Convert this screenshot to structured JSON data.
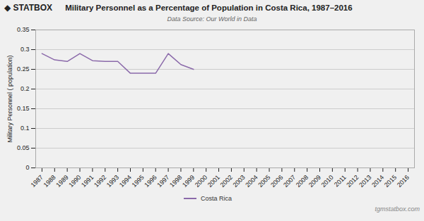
{
  "chart_data": {
    "type": "line",
    "title": "Military Personnel as a Percentage of Population in Costa Rica, 1987–2016",
    "subtitle": "Data Source: Our World in Data",
    "ylabel": "Military Personnel ( population)",
    "annotations": [
      "◆ STATBOX",
      "tgmstatbox.com"
    ],
    "x": [
      1987,
      1988,
      1989,
      1990,
      1991,
      1992,
      1993,
      1994,
      1995,
      1996,
      1997,
      1998,
      1999,
      2000,
      2001,
      2002,
      2003,
      2004,
      2005,
      2006,
      2007,
      2008,
      2009,
      2010,
      2011,
      2012,
      2013,
      2014,
      2015,
      2016
    ],
    "series": [
      {
        "name": "Costa Rica",
        "color": "#8b6aaa",
        "values": [
          0.29,
          0.274,
          0.27,
          0.29,
          0.272,
          0.27,
          0.27,
          0.24,
          0.24,
          0.24,
          0.29,
          0.262,
          0.25,
          null,
          null,
          null,
          null,
          null,
          null,
          null,
          null,
          null,
          null,
          null,
          null,
          null,
          null,
          null,
          null,
          null
        ]
      }
    ],
    "xlim": [
      1986.5,
      2016.5
    ],
    "xticks": [
      1987,
      1988,
      1989,
      1990,
      1991,
      1992,
      1993,
      1994,
      1995,
      1996,
      1997,
      1998,
      1999,
      2000,
      2001,
      2002,
      2003,
      2004,
      2005,
      2006,
      2007,
      2008,
      2009,
      2010,
      2011,
      2012,
      2013,
      2014,
      2015,
      2016
    ],
    "ylim": [
      0,
      0.35
    ],
    "yticks": [
      0,
      0.05,
      0.1,
      0.15,
      0.2,
      0.25,
      0.3,
      0.35
    ],
    "grid": true,
    "legend": "bottom"
  }
}
